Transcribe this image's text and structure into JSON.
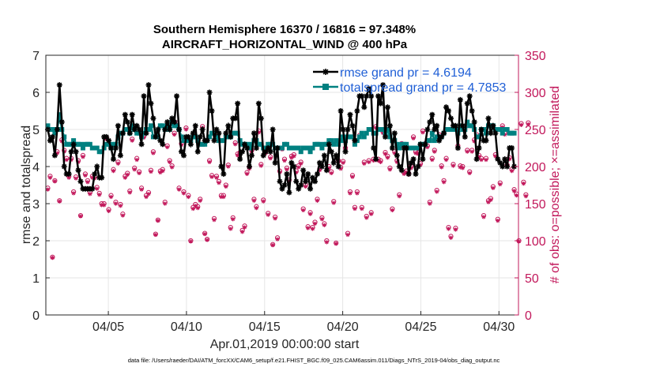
{
  "chart_data": {
    "type": "line",
    "title_line1": "Southern Hemisphere 16370 / 16816 = 97.348%",
    "title_line2": "AIRCRAFT_HORIZONTAL_WIND @ 400 hPa",
    "xlabel": "Apr.01,2019 00:00:00 start",
    "ylabel": "rmse and totalspread",
    "ylabel_right": "# of obs: o=possible; ×=assimilated",
    "footer": "data file: /Users/raeder/DAI/ATM_forcXX/CAM6_setup/f.e21.FHIST_BGC.f09_025.CAM6assim.011/Diags_NTrS_2019-04/obs_diag_output.nc",
    "xlim": [
      1,
      31.25
    ],
    "ylim": [
      0,
      7
    ],
    "ylim_right": [
      0,
      350
    ],
    "x_ticks": [
      5,
      10,
      15,
      20,
      25,
      30
    ],
    "x_tick_labels": [
      "04/05",
      "04/10",
      "04/15",
      "04/20",
      "04/25",
      "04/30"
    ],
    "y_ticks": [
      0,
      1,
      2,
      3,
      4,
      5,
      6,
      7
    ],
    "y_tick_labels": [
      "0",
      "1",
      "2",
      "3",
      "4",
      "5",
      "6",
      "7"
    ],
    "y_right_ticks": [
      0,
      50,
      100,
      150,
      200,
      250,
      300,
      350
    ],
    "y_right_tick_labels": [
      "0",
      "50",
      "100",
      "150",
      "200",
      "250",
      "300",
      "350"
    ],
    "legend": [
      {
        "label": "rmse grand pr = 4.6194",
        "color": "#000000",
        "marker": "star"
      },
      {
        "label": "totalspread grand pr = 4.7853",
        "color": "#008080",
        "marker": "square"
      }
    ],
    "series": [
      {
        "name": "rmse",
        "color": "#000000",
        "marker": "star",
        "values": [
          5.0,
          4.7,
          4.8,
          4.3,
          5.0,
          6.2,
          5.2,
          4.0,
          3.8,
          3.8,
          4.4,
          4.6,
          4.4,
          3.9,
          3.6,
          3.4,
          3.4,
          3.4,
          3.4,
          3.4,
          3.8,
          4.0,
          3.7,
          3.7,
          4.8,
          4.8,
          4.7,
          4.5,
          4.2,
          4.5,
          5.1,
          4.3,
          4.9,
          5.4,
          5.2,
          4.9,
          5.4,
          5.0,
          5.1,
          5.0,
          4.6,
          5.9,
          4.9,
          6.2,
          5.7,
          5.3,
          4.8,
          5.0,
          4.7,
          4.6,
          5.0,
          5.2,
          5.0,
          5.3,
          5.2,
          5.9,
          5.0,
          4.4,
          4.3,
          4.8,
          4.8,
          4.6,
          4.9,
          5.1,
          4.4,
          4.8,
          5.0,
          4.7,
          4.7,
          6.0,
          5.5,
          4.7,
          5.0,
          4.9,
          4.0,
          3.8,
          4.9,
          5.1,
          4.8,
          5.3,
          5.3,
          5.7,
          4.2,
          4.4,
          4.6,
          4.5,
          4.0,
          4.3,
          4.9,
          4.5,
          5.7,
          5.3,
          4.3,
          4.4,
          4.5,
          4.4,
          5.0,
          4.1,
          4.5,
          3.6,
          3.4,
          3.5,
          3.8,
          3.3,
          4.1,
          4.0,
          3.6,
          3.4,
          3.5,
          3.9,
          3.6,
          3.8,
          3.4,
          3.7,
          3.6,
          3.8,
          4.1,
          4.0,
          4.3,
          3.9,
          4.6,
          4.4,
          4.1,
          4.3,
          4.0,
          5.5,
          5.0,
          4.4,
          5.0,
          5.4,
          5.1,
          4.7,
          5.5,
          5.9,
          5.9,
          5.6,
          5.9,
          6.1,
          5.9,
          4.5,
          4.2,
          5.9,
          5.7,
          6.2,
          4.8,
          5.6,
          5.1,
          4.5,
          4.9,
          4.3,
          4.0,
          3.9,
          4.5,
          4.5,
          3.8,
          4.1,
          4.2,
          3.8,
          4.0,
          4.6,
          4.2,
          4.6,
          5.0,
          5.2,
          5.4,
          5.0,
          5.1,
          4.7,
          4.8,
          4.9,
          5.6,
          5.5,
          5.3,
          5.1,
          5.1,
          4.5,
          5.8,
          5.1,
          4.8,
          5.7,
          5.9,
          5.5,
          5.2,
          4.2,
          4.5,
          5.0,
          4.7,
          4.7,
          5.3,
          4.9,
          5.1,
          4.9,
          4.2,
          4.1,
          4.0,
          4.2,
          4.0,
          4.5,
          4.5,
          4.0
        ]
      },
      {
        "name": "totalspread",
        "color": "#008080",
        "marker": "square",
        "values": [
          5.1,
          5.0,
          5.0,
          4.9,
          5.0,
          5.4,
          5.0,
          4.8,
          4.6,
          4.6,
          4.6,
          4.7,
          4.6,
          4.6,
          4.6,
          4.5,
          4.6,
          4.6,
          4.6,
          4.5,
          4.5,
          4.5,
          4.4,
          4.4,
          4.5,
          4.6,
          4.6,
          4.5,
          4.6,
          4.6,
          4.8,
          4.9,
          4.9,
          5.0,
          5.0,
          4.9,
          5.1,
          5.0,
          4.9,
          4.9,
          4.8,
          4.9,
          5.0,
          5.0,
          5.1,
          4.8,
          4.8,
          4.8,
          5.1,
          5.1,
          5.0,
          5.1,
          5.0,
          5.2,
          5.1,
          5.1,
          5.0,
          4.8,
          4.7,
          4.7,
          4.7,
          4.7,
          4.8,
          4.8,
          4.7,
          4.6,
          4.6,
          4.6,
          4.7,
          4.8,
          4.9,
          4.9,
          4.8,
          4.7,
          4.7,
          4.7,
          4.8,
          4.8,
          4.8,
          4.9,
          4.9,
          4.9,
          4.7,
          4.6,
          4.6,
          4.6,
          4.5,
          4.6,
          4.7,
          4.7,
          4.6,
          4.6,
          4.5,
          4.5,
          4.6,
          4.6,
          4.6,
          4.5,
          4.5,
          4.5,
          4.5,
          4.6,
          4.6,
          4.5,
          4.5,
          4.5,
          4.5,
          4.5,
          4.4,
          4.5,
          4.5,
          4.5,
          4.4,
          4.5,
          4.6,
          4.6,
          4.6,
          4.5,
          4.6,
          4.6,
          4.7,
          4.7,
          4.6,
          4.7,
          4.6,
          4.7,
          4.8,
          4.7,
          4.8,
          4.8,
          4.8,
          4.6,
          4.7,
          4.8,
          4.9,
          4.8,
          4.9,
          5.0,
          5.0,
          4.9,
          4.9,
          5.0,
          5.0,
          5.0,
          4.9,
          5.0,
          4.8,
          4.7,
          4.7,
          4.6,
          4.5,
          4.6,
          4.6,
          4.6,
          4.5,
          4.5,
          4.5,
          4.5,
          4.5,
          4.6,
          4.6,
          4.6,
          4.7,
          4.7,
          4.9,
          4.7,
          4.8,
          4.8,
          4.8,
          4.9,
          5.0,
          5.0,
          5.0,
          5.0,
          5.0,
          4.9,
          5.1,
          5.0,
          5.0,
          5.2,
          5.1,
          5.1,
          5.0,
          4.8,
          4.8,
          5.0,
          5.0,
          4.9,
          5.1,
          5.1,
          5.1,
          5.0,
          5.0,
          5.0,
          4.9,
          5.0,
          5.0,
          4.9,
          4.9,
          4.9
        ]
      }
    ],
    "obs_possible": [
      171,
      187,
      78,
      181,
      220,
      154,
      236,
      222,
      211,
      187,
      211,
      166,
      186,
      208,
      134,
      215,
      190,
      181,
      165,
      187,
      186,
      172,
      164,
      150,
      150,
      239,
      142,
      161,
      196,
      152,
      206,
      149,
      136,
      187,
      191,
      167,
      237,
      198,
      211,
      193,
      171,
      241,
      161,
      165,
      195,
      220,
      109,
      128,
      194,
      196,
      152,
      228,
      208,
      201,
      245,
      259,
      171,
      231,
      166,
      252,
      161,
      100,
      145,
      149,
      146,
      156,
      254,
      110,
      102,
      208,
      188,
      130,
      187,
      180,
      161,
      161,
      175,
      202,
      118,
      131,
      232,
      217,
      219,
      114,
      120,
      192,
      199,
      222,
      156,
      146,
      248,
      203,
      155,
      220,
      137,
      213,
      95,
      132,
      104,
      194,
      225,
      210,
      198,
      182,
      214,
      216,
      194,
      201,
      206,
      143,
      175,
      119,
      138,
      118,
      125,
      156,
      197,
      131,
      123,
      100,
      200,
      193,
      153,
      97,
      208,
      199,
      207,
      225,
      110,
      166,
      188,
      145,
      166,
      242,
      145,
      206,
      133,
      208,
      138,
      210,
      254,
      210,
      208,
      247,
      219,
      214,
      198,
      143,
      220,
      208,
      162,
      231,
      192,
      194,
      191,
      200,
      240,
      220,
      219,
      204,
      248,
      231,
      228,
      152,
      211,
      222,
      168,
      243,
      201,
      181,
      211,
      118,
      106,
      203,
      117,
      228,
      201,
      200,
      254,
      222,
      193,
      222,
      236,
      243,
      215,
      211,
      134,
      211,
      154,
      157,
      173,
      216,
      129,
      178,
      255,
      245,
      202,
      212,
      196,
      169,
      163,
      100,
      258,
      179,
      162,
      259
    ],
    "obs_assimilated": [
      169,
      185,
      77,
      180,
      218,
      153,
      234,
      220,
      209,
      185,
      209,
      164,
      184,
      206,
      133,
      213,
      188,
      179,
      163,
      185,
      184,
      170,
      162,
      148,
      148,
      237,
      140,
      159,
      194,
      150,
      204,
      147,
      134,
      185,
      189,
      165,
      235,
      196,
      209,
      191,
      169,
      239,
      159,
      163,
      193,
      218,
      108,
      127,
      192,
      194,
      150,
      226,
      206,
      199,
      243,
      257,
      169,
      229,
      164,
      250,
      159,
      99,
      143,
      147,
      144,
      154,
      252,
      109,
      101,
      206,
      186,
      128,
      185,
      178,
      159,
      159,
      173,
      200,
      116,
      129,
      230,
      215,
      217,
      112,
      118,
      190,
      197,
      220,
      154,
      144,
      246,
      201,
      153,
      218,
      135,
      211,
      94,
      130,
      102,
      192,
      223,
      208,
      196,
      180,
      212,
      214,
      192,
      199,
      204,
      141,
      173,
      117,
      136,
      116,
      123,
      154,
      195,
      129,
      121,
      98,
      198,
      191,
      151,
      96,
      206,
      197,
      205,
      223,
      108,
      164,
      186,
      143,
      164,
      240,
      143,
      204,
      131,
      206,
      136,
      208,
      252,
      208,
      206,
      245,
      217,
      212,
      196,
      141,
      218,
      206,
      160,
      229,
      190,
      192,
      189,
      198,
      238,
      218,
      217,
      202,
      246,
      229,
      226,
      150,
      209,
      220,
      166,
      241,
      199,
      179,
      209,
      116,
      104,
      201,
      115,
      226,
      199,
      198,
      252,
      220,
      191,
      220,
      234,
      241,
      213,
      209,
      132,
      209,
      152,
      155,
      171,
      214,
      127,
      176,
      253,
      243,
      200,
      210,
      194,
      167,
      161,
      99,
      256,
      177,
      160,
      257
    ]
  }
}
